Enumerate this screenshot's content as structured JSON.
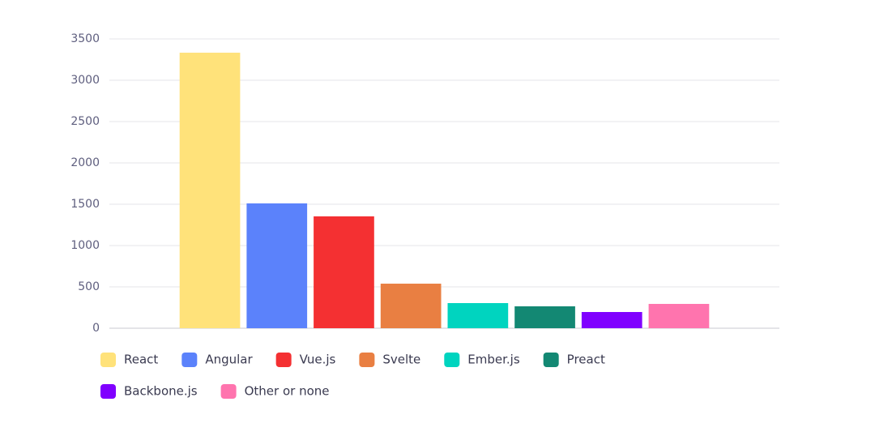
{
  "chart_data": {
    "type": "bar",
    "categories": [
      null
    ],
    "series": [
      {
        "name": "React",
        "color": "#ffe27a",
        "values": [
          3333
        ]
      },
      {
        "name": "Angular",
        "color": "#5b82fb",
        "values": [
          1510
        ]
      },
      {
        "name": "Vue.js",
        "color": "#f43032",
        "values": [
          1353
        ]
      },
      {
        "name": "Svelte",
        "color": "#e97f42",
        "values": [
          539
        ]
      },
      {
        "name": "Ember.js",
        "color": "#00d4bf",
        "values": [
          304
        ]
      },
      {
        "name": "Preact",
        "color": "#138873",
        "values": [
          265
        ]
      },
      {
        "name": "Backbone.js",
        "color": "#8000ff",
        "values": [
          196
        ]
      },
      {
        "name": "Other or none",
        "color": "#ff74ae",
        "values": [
          294
        ]
      }
    ],
    "ylim": [
      0,
      3500
    ],
    "yticks": [
      0,
      500,
      1000,
      1500,
      2000,
      2500,
      3000,
      3500
    ],
    "grid": true
  }
}
